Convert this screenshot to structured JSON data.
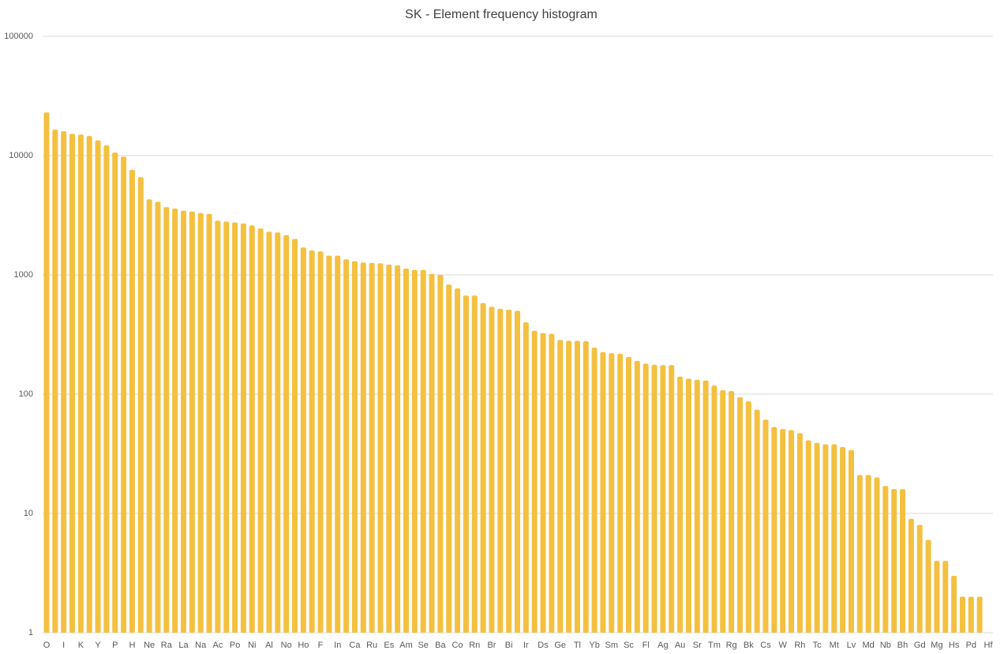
{
  "chart_data": {
    "type": "bar",
    "title": "SK - Element frequency histogram",
    "categories": [
      "O",
      null,
      "I",
      null,
      "K",
      null,
      "Y",
      null,
      "P",
      null,
      "H",
      null,
      "Ne",
      null,
      "Ra",
      null,
      "La",
      null,
      "Na",
      null,
      "Ac",
      null,
      "Po",
      null,
      "Ni",
      null,
      "Al",
      null,
      "No",
      null,
      "Ho",
      null,
      "F",
      null,
      "In",
      null,
      "Ca",
      null,
      "Ru",
      null,
      "Es",
      null,
      "Am",
      null,
      "Se",
      null,
      "Ba",
      null,
      "Co",
      null,
      "Rn",
      null,
      "Br",
      null,
      "Bi",
      null,
      "Ir",
      null,
      "Ds",
      null,
      "Ge",
      null,
      "Tl",
      null,
      "Yb",
      null,
      "Sm",
      null,
      "Sc",
      null,
      "Fl",
      null,
      "Ag",
      null,
      "Au",
      null,
      "Sr",
      null,
      "Tm",
      null,
      "Rg",
      null,
      "Bk",
      null,
      "Cs",
      null,
      "W",
      null,
      "Rh",
      null,
      "Tc",
      null,
      "Mt",
      null,
      "Lv",
      null,
      "Md",
      null,
      "Nb",
      null,
      "Bh",
      null,
      "Gd",
      null,
      "Mg",
      null,
      "Hs",
      null,
      "Pd",
      null,
      "Hf"
    ],
    "values": [
      23000,
      16500,
      16000,
      15200,
      15000,
      14600,
      13400,
      12200,
      10600,
      9800,
      7600,
      6600,
      4300,
      4100,
      3700,
      3600,
      3450,
      3400,
      3300,
      3250,
      2850,
      2800,
      2750,
      2700,
      2600,
      2450,
      2300,
      2270,
      2150,
      2000,
      1700,
      1600,
      1570,
      1450,
      1450,
      1350,
      1300,
      1270,
      1260,
      1250,
      1220,
      1200,
      1130,
      1100,
      1100,
      1020,
      1000,
      830,
      770,
      670,
      670,
      580,
      540,
      520,
      510,
      500,
      400,
      340,
      325,
      320,
      285,
      280,
      280,
      278,
      245,
      225,
      220,
      218,
      205,
      190,
      180,
      176,
      175,
      175,
      140,
      135,
      132,
      130,
      118,
      108,
      106,
      94,
      87,
      74,
      61,
      53,
      51,
      50,
      47,
      41,
      39,
      38,
      38,
      36,
      34,
      21,
      21,
      20,
      17,
      16,
      16,
      9,
      8,
      6,
      4,
      4,
      3,
      2,
      2,
      2,
      1
    ],
    "color": "#f4c040",
    "log_scale": true,
    "ylim": [
      1,
      100000
    ],
    "yticks": [
      1,
      10,
      100,
      1000,
      10000,
      100000
    ],
    "grid": true
  }
}
